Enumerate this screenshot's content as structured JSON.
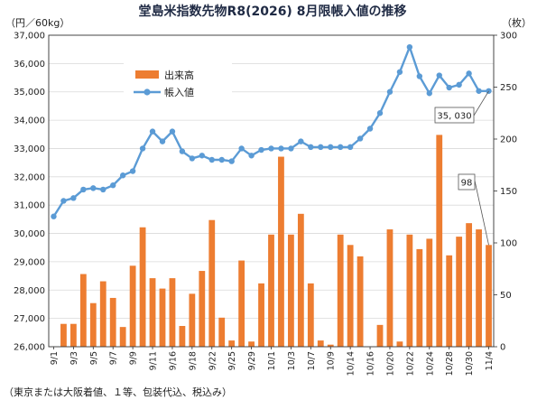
{
  "chart_data": {
    "type": "bar+line",
    "title": "堂島米指数先物R8(2026) 8月限帳入値の推移",
    "left_unit": "（円／60kg）",
    "right_unit": "（枚）",
    "note": "（東京または大阪着値、１等、包装代込、税込み）",
    "left_axis": {
      "ylim": [
        26000,
        37000
      ],
      "ticks": [
        "26,000",
        "27,000",
        "28,000",
        "29,000",
        "30,000",
        "31,000",
        "32,000",
        "33,000",
        "34,000",
        "35,000",
        "36,000",
        "37,000"
      ]
    },
    "right_axis": {
      "ylim": [
        0,
        300
      ],
      "ticks": [
        "0",
        "50",
        "100",
        "150",
        "200",
        "250",
        "300"
      ]
    },
    "x_tick_labels": [
      "9/1",
      "9/3",
      "9/5",
      "9/7",
      "9/9",
      "9/11",
      "9/16",
      "9/18",
      "9/22",
      "9/25",
      "9/29",
      "10/1",
      "10/3",
      "10/7",
      "10/9",
      "10/14",
      "10/16",
      "10/20",
      "10/22",
      "10/24",
      "10/28",
      "10/30",
      "11/4"
    ],
    "series": [
      {
        "name": "出来高",
        "axis": "right",
        "color": "#ed7d31",
        "values": [
          0,
          22,
          22,
          70,
          42,
          63,
          47,
          19,
          78,
          115,
          66,
          56,
          66,
          20,
          51,
          73,
          122,
          28,
          6,
          83,
          5,
          61,
          108,
          183,
          108,
          128,
          61,
          6,
          2,
          108,
          98,
          87,
          0,
          21,
          113,
          5,
          108,
          94,
          104,
          204,
          88,
          106,
          119,
          113,
          98
        ]
      },
      {
        "name": "帳入値",
        "axis": "left",
        "color": "#5b9bd5",
        "values": [
          30600,
          31150,
          31250,
          31550,
          31600,
          31550,
          31700,
          32050,
          32200,
          33000,
          33600,
          33250,
          33600,
          32900,
          32650,
          32750,
          32600,
          32600,
          32550,
          33000,
          32750,
          32950,
          33000,
          33000,
          33000,
          33250,
          33050,
          33050,
          33050,
          33050,
          33050,
          33350,
          33700,
          34250,
          35000,
          35700,
          36580,
          35550,
          34950,
          35580,
          35150,
          35250,
          35650,
          35030,
          35030
        ]
      }
    ],
    "callouts": {
      "line_last": "35, 030",
      "bar_last": "98"
    }
  }
}
